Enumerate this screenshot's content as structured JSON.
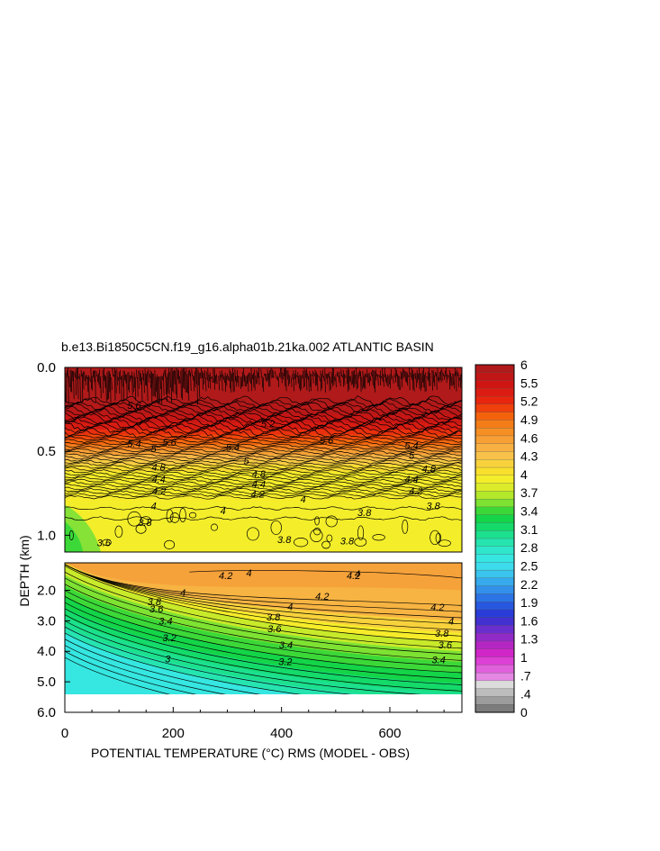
{
  "chart_data": {
    "type": "heatmap",
    "title": "b.e13.Bi1850C5CN.f19_g16.alpha01b.21ka.002 ATLANTIC BASIN",
    "xlabel": "POTENTIAL TEMPERATURE (°C) RMS (MODEL - OBS)",
    "ylabel": "DEPTH (km)",
    "xlim": [
      0,
      733
    ],
    "x_ticks": [
      "0",
      "200",
      "400",
      "600"
    ],
    "x_tick_values": [
      0,
      200,
      400,
      600
    ],
    "upper_panel": {
      "ylim": [
        0,
        1.1
      ],
      "y_ticks": [
        "0.0",
        "0.5",
        "1.0"
      ],
      "y_tick_values": [
        0.0,
        0.5,
        1.0
      ],
      "contour_labels": [
        {
          "text": "5.6",
          "x": 128,
          "y": 0.23
        },
        {
          "text": "5.4",
          "x": 128,
          "y": 0.46
        },
        {
          "text": "5",
          "x": 164,
          "y": 0.49
        },
        {
          "text": "4.8",
          "x": 173,
          "y": 0.6
        },
        {
          "text": "4.4",
          "x": 173,
          "y": 0.67
        },
        {
          "text": "4.2",
          "x": 174,
          "y": 0.74
        },
        {
          "text": "4",
          "x": 164,
          "y": 0.83
        },
        {
          "text": "3.8",
          "x": 148,
          "y": 0.93
        },
        {
          "text": "3.6",
          "x": 72,
          "y": 1.05
        },
        {
          "text": "5.6",
          "x": 193,
          "y": 0.45
        },
        {
          "text": "5.4",
          "x": 310,
          "y": 0.48
        },
        {
          "text": "5",
          "x": 335,
          "y": 0.56
        },
        {
          "text": "4.8",
          "x": 358,
          "y": 0.64
        },
        {
          "text": "4.4",
          "x": 358,
          "y": 0.7
        },
        {
          "text": "4.2",
          "x": 356,
          "y": 0.76
        },
        {
          "text": "4",
          "x": 440,
          "y": 0.79
        },
        {
          "text": "4",
          "x": 292,
          "y": 0.86
        },
        {
          "text": "3.8",
          "x": 405,
          "y": 1.03
        },
        {
          "text": "3.8",
          "x": 521,
          "y": 1.04
        },
        {
          "text": "3.8",
          "x": 553,
          "y": 0.87
        },
        {
          "text": "5.6",
          "x": 483,
          "y": 0.44
        },
        {
          "text": "5.4",
          "x": 640,
          "y": 0.47
        },
        {
          "text": "5",
          "x": 640,
          "y": 0.53
        },
        {
          "text": "4.8",
          "x": 672,
          "y": 0.61
        },
        {
          "text": "4.4",
          "x": 640,
          "y": 0.67
        },
        {
          "text": "4.2",
          "x": 648,
          "y": 0.74
        },
        {
          "text": "3.8",
          "x": 680,
          "y": 0.83
        },
        {
          "text": "5.2",
          "x": 375,
          "y": 0.34
        }
      ]
    },
    "lower_panel": {
      "ylim": [
        1.1,
        6.0
      ],
      "y_ticks": [
        "2.0",
        "3.0",
        "4.0",
        "5.0",
        "6.0"
      ],
      "y_tick_values": [
        2.0,
        3.0,
        4.0,
        5.0,
        6.0
      ],
      "data_extent_y": 5.35,
      "contour_labels": [
        {
          "text": "4.2",
          "x": 297,
          "y": 1.54
        },
        {
          "text": "4",
          "x": 340,
          "y": 1.46
        },
        {
          "text": "4.2",
          "x": 533,
          "y": 1.55
        },
        {
          "text": "4",
          "x": 540,
          "y": 1.48
        },
        {
          "text": "4",
          "x": 218,
          "y": 2.1
        },
        {
          "text": "3.8",
          "x": 165,
          "y": 2.4
        },
        {
          "text": "3.6",
          "x": 169,
          "y": 2.64
        },
        {
          "text": "3.4",
          "x": 186,
          "y": 3.03
        },
        {
          "text": "3.2",
          "x": 193,
          "y": 3.58
        },
        {
          "text": "3",
          "x": 190,
          "y": 4.27
        },
        {
          "text": "4",
          "x": 416,
          "y": 2.57
        },
        {
          "text": "4.2",
          "x": 475,
          "y": 2.22
        },
        {
          "text": "3.8",
          "x": 385,
          "y": 2.91
        },
        {
          "text": "3.6",
          "x": 387,
          "y": 3.28
        },
        {
          "text": "3.4",
          "x": 408,
          "y": 3.82
        },
        {
          "text": "3.2",
          "x": 407,
          "y": 4.37
        },
        {
          "text": "4.2",
          "x": 688,
          "y": 2.58
        },
        {
          "text": "4",
          "x": 713,
          "y": 3.04
        },
        {
          "text": "3.8",
          "x": 696,
          "y": 3.44
        },
        {
          "text": "3.6",
          "x": 702,
          "y": 3.82
        },
        {
          "text": "3.4",
          "x": 690,
          "y": 4.31
        }
      ]
    },
    "colorbar": {
      "labels": [
        "6",
        "5.5",
        "5.2",
        "4.9",
        "4.6",
        "4.3",
        "4",
        "3.7",
        "3.4",
        "3.1",
        "2.8",
        "2.5",
        "2.2",
        "1.9",
        "1.6",
        "1.3",
        "1",
        ".7",
        ".4",
        "0"
      ],
      "colors": [
        "#b01a1a",
        "#c01616",
        "#cf1512",
        "#dc1c12",
        "#e8260e",
        "#f0400c",
        "#f4620c",
        "#f37d18",
        "#f68f24",
        "#f7a036",
        "#f7b042",
        "#f8c24a",
        "#f8d23c",
        "#f8e02c",
        "#f4ee2a",
        "#dcec2a",
        "#b4e82a",
        "#7ee232",
        "#3cd838",
        "#14d448",
        "#14da6a",
        "#1ce08e",
        "#26e4b0",
        "#2ee6cc",
        "#36e6e0",
        "#3cdcec",
        "#3ac4ee",
        "#36aaec",
        "#3290ea",
        "#2c74e6",
        "#2858e0",
        "#2a3cd8",
        "#4230d0",
        "#6a2ecc",
        "#922ac8",
        "#b426c4",
        "#d026c8",
        "#dc40d4",
        "#e060dc",
        "#e488e4",
        "#dcdcdc",
        "#bcbcbc",
        "#9c9c9c",
        "#7c7c7c"
      ]
    }
  }
}
